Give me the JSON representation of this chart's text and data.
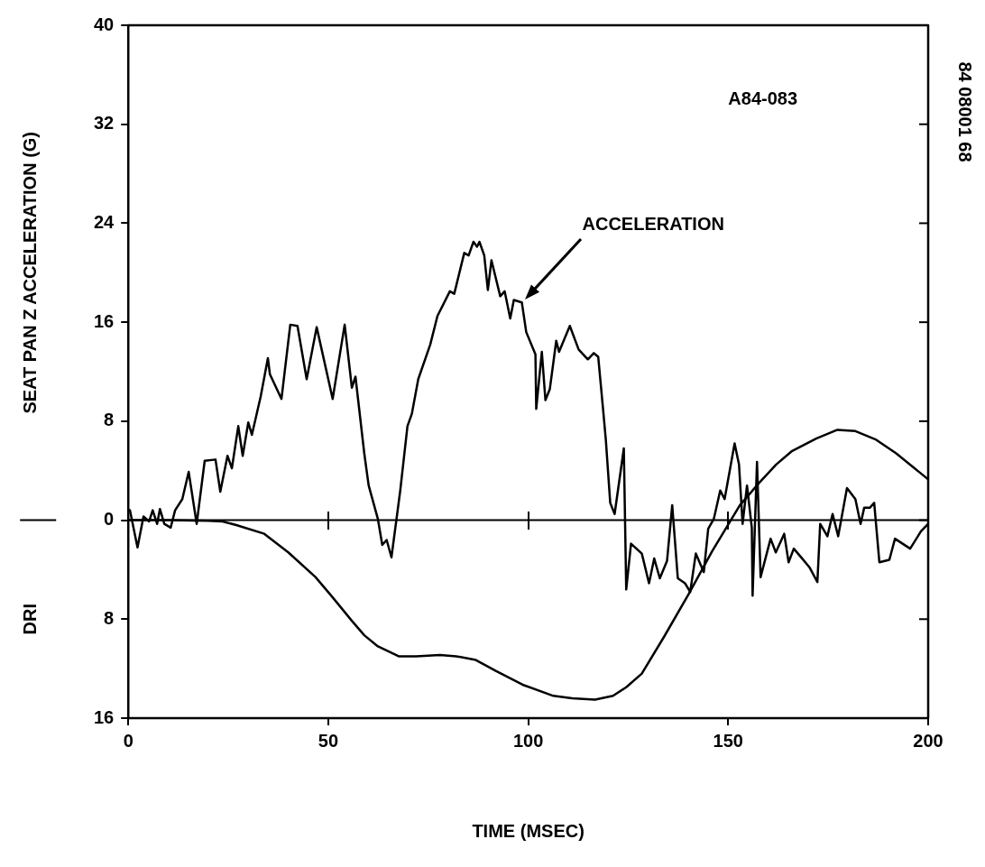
{
  "chart_data": {
    "type": "line",
    "xlabel": "TIME (MSEC)",
    "ylabel": "SEAT PAN Z ACCELERATION (G)",
    "annotations": [
      "A84-083",
      "84 08001 68",
      "DRI"
    ],
    "xlim": [
      0,
      200
    ],
    "xticks": [
      0,
      50,
      100,
      150,
      200
    ],
    "ylim": [
      -16,
      40
    ],
    "yticks": [
      {
        "value": -16,
        "label": "16"
      },
      {
        "value": -8,
        "label": "8"
      },
      0,
      8,
      16,
      24,
      32,
      40
    ],
    "grid": false,
    "legend": false,
    "ref_lines": [
      {
        "axis": "y",
        "value": 0
      }
    ],
    "series": [
      {
        "name": "ACCELERATION",
        "color": "#000000",
        "x": [
          0,
          0.4,
          2.3,
          3.8,
          5.2,
          6.1,
          7.2,
          7.9,
          9,
          10.6,
          11.7,
          13.5,
          15.1,
          17.1,
          19.1,
          21.8,
          23,
          24.8,
          25.9,
          27.5,
          28.6,
          30,
          30.9,
          33.1,
          34.9,
          35.4,
          38.3,
          40.5,
          42.3,
          44.6,
          47.1,
          51.1,
          54.1,
          55.9,
          56.8,
          59,
          60.1,
          62.4,
          63.5,
          64.6,
          65.8,
          68,
          69.8,
          70.9,
          72.5,
          75.5,
          77.3,
          80.4,
          81.5,
          84,
          85.1,
          86.3,
          87.2,
          87.8,
          89,
          89.9,
          90.8,
          93,
          94.1,
          95.5,
          96.4,
          98.4,
          99.5,
          101.8,
          102,
          103.4,
          104.3,
          105.4,
          107,
          107.7,
          110.4,
          112.6,
          114.9,
          116.4,
          117.5,
          118.7,
          119.4,
          120.5,
          121.6,
          123.9,
          124.5,
          125.7,
          128.4,
          130.2,
          131.5,
          132.9,
          134.7,
          136,
          137.4,
          139.2,
          140.5,
          141.9,
          143.9,
          145,
          146.4,
          148,
          149.1,
          151.6,
          152.7,
          153.6,
          154.7,
          155.9,
          156.1,
          157.2,
          158.1,
          160.6,
          161.9,
          164,
          165.1,
          166.4,
          168.5,
          170.3,
          172.3,
          173,
          174.8,
          176.1,
          177.5,
          179.7,
          181.8,
          183.1,
          184,
          185.4,
          186.5,
          187.8,
          190.3,
          191.7,
          195.5,
          198.2,
          200
        ],
        "values": [
          0.8,
          0.8,
          -2.2,
          0.3,
          -0.1,
          0.8,
          -0.3,
          0.9,
          -0.3,
          -0.6,
          0.8,
          1.7,
          3.9,
          -0.3,
          4.8,
          4.9,
          2.3,
          5.2,
          4.2,
          7.6,
          5.2,
          7.9,
          6.9,
          10,
          13.1,
          11.8,
          9.8,
          15.8,
          15.7,
          11.4,
          15.6,
          9.8,
          15.8,
          10.7,
          11.6,
          5.4,
          2.8,
          0.1,
          -2,
          -1.6,
          -3,
          2.4,
          7.6,
          8.6,
          11.4,
          14.2,
          16.5,
          18.5,
          18.3,
          21.6,
          21.4,
          22.5,
          22.1,
          22.5,
          21.4,
          18.6,
          21,
          18.1,
          18.5,
          16.3,
          17.8,
          17.6,
          15.2,
          13.4,
          9,
          13.6,
          9.7,
          10.6,
          14.5,
          13.6,
          15.7,
          13.8,
          13,
          13.5,
          13.2,
          9,
          6.5,
          1.4,
          0.5,
          5.8,
          -5.6,
          -1.9,
          -2.7,
          -5.1,
          -3.1,
          -4.7,
          -3.3,
          1.2,
          -4.7,
          -5.1,
          -5.8,
          -2.7,
          -4.2,
          -0.7,
          0.1,
          2.4,
          1.7,
          6.2,
          4.5,
          -0.3,
          2.8,
          -0.6,
          -6.1,
          4.7,
          -4.6,
          -1.5,
          -2.6,
          -1.1,
          -3.4,
          -2.3,
          -3.1,
          -3.8,
          -5,
          -0.3,
          -1.3,
          0.5,
          -1.3,
          2.6,
          1.7,
          -0.3,
          1,
          1,
          1.4,
          -3.4,
          -3.2,
          -1.5,
          -2.3,
          -0.9,
          -0.3
        ]
      },
      {
        "color": "#000000",
        "x": [
          0,
          10,
          20,
          23.6,
          27,
          34,
          40,
          46.8,
          51,
          55.8,
          59,
          62.4,
          67.6,
          72,
          77.9,
          82,
          86.9,
          92,
          98.6,
          106.3,
          111,
          116.7,
          121.2,
          124.5,
          128.4,
          134,
          139.9,
          146,
          152.9,
          157.7,
          162,
          166,
          172,
          177.3,
          181.8,
          187,
          192,
          200
        ],
        "values": [
          0,
          0,
          -0.05,
          -0.1,
          -0.4,
          -1.1,
          -2.6,
          -4.6,
          -6.2,
          -8.1,
          -9.3,
          -10.2,
          -11,
          -11,
          -10.9,
          -11,
          -11.3,
          -12.2,
          -13.3,
          -14.2,
          -14.4,
          -14.5,
          -14.2,
          -13.5,
          -12.4,
          -9.4,
          -6.1,
          -2.5,
          1.2,
          3,
          4.5,
          5.6,
          6.6,
          7.3,
          7.2,
          6.5,
          5.4,
          3.3
        ]
      }
    ]
  }
}
